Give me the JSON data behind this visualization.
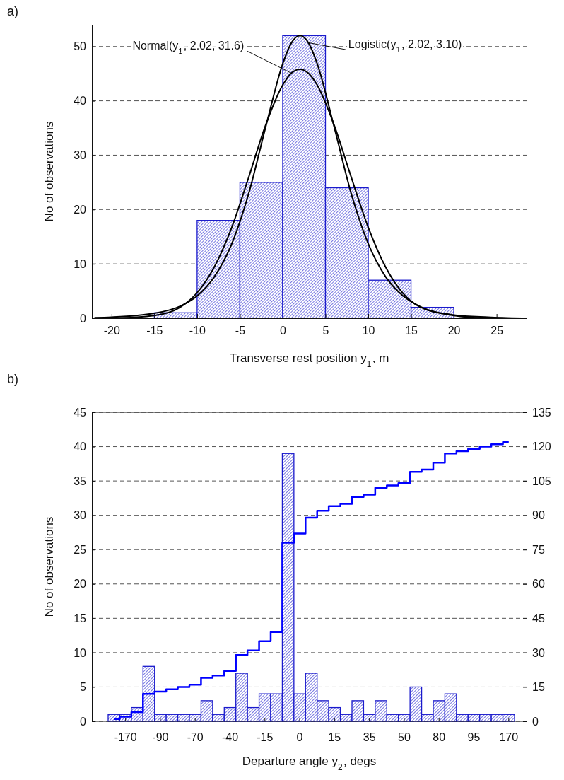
{
  "chart_data": [
    {
      "type": "histogram",
      "xlabel": "Transverse rest position y$_{1}$, m",
      "ylabel": "No of observations",
      "bins": [
        -15,
        -10,
        -5,
        0,
        5,
        10,
        15,
        20
      ],
      "values": [
        1,
        18,
        25,
        52,
        24,
        7,
        2
      ],
      "color": "#1a1acc",
      "xlim": [
        -22.3,
        28.5
      ],
      "xticks": [
        -20,
        -15,
        -10,
        -5,
        0,
        5,
        10,
        15,
        20,
        25
      ],
      "ylim": [
        0,
        54
      ],
      "yticks": [
        0,
        10,
        20,
        30,
        40,
        50
      ],
      "grid": "y",
      "annotations": [
        "a)"
      ],
      "series": [
        {
          "type": "line",
          "name": "Normal(y$_{1}$, 2.02, 31.6)",
          "color": "#000000",
          "x": [
            -20,
            -15,
            -12,
            -10,
            -8,
            -6,
            -4,
            -2,
            0,
            1,
            2.02,
            3,
            4,
            6,
            8,
            10,
            12,
            14,
            16,
            20,
            24
          ],
          "values": [
            0.0,
            0.5,
            2.0,
            4.7,
            9.4,
            16.5,
            25.8,
            35.5,
            42.9,
            45.1,
            45.8,
            45.1,
            43.0,
            35.6,
            26.0,
            16.7,
            9.5,
            4.7,
            2.1,
            0.5,
            0.0
          ]
        },
        {
          "type": "line",
          "name": "Logistic(y$_{1}$, 2.02, 3.10)",
          "color": "#000000",
          "x": [
            -22,
            -20,
            -15,
            -12,
            -10,
            -8,
            -6,
            -4,
            -2,
            0,
            1,
            2.02,
            3,
            4,
            6,
            8,
            10,
            12,
            14,
            16,
            20,
            24,
            28
          ],
          "values": [
            0.1,
            0.2,
            0.9,
            2.2,
            4.1,
            7.6,
            13.5,
            22.8,
            35.1,
            46.8,
            50.6,
            52.0,
            50.7,
            47.0,
            35.3,
            23.0,
            13.7,
            7.7,
            4.2,
            2.2,
            0.6,
            0.2,
            0.0
          ]
        }
      ]
    },
    {
      "type": "bar",
      "xlabel": "Departure angle y$_{2}$, degs",
      "ylabel": "No of observations",
      "categories": [
        null,
        "-170",
        null,
        null,
        "-90",
        null,
        null,
        "-70",
        null,
        null,
        "-40",
        null,
        null,
        "-15",
        null,
        null,
        "0",
        null,
        null,
        "15",
        null,
        null,
        "35",
        null,
        null,
        "50",
        null,
        null,
        "80",
        null,
        null,
        "95",
        null,
        null,
        "170"
      ],
      "ylim": [
        0,
        45
      ],
      "yticks": [
        0,
        5,
        10,
        15,
        20,
        25,
        30,
        35,
        40,
        45
      ],
      "y2lim": [
        0,
        135
      ],
      "y2ticks": [
        0,
        15,
        30,
        45,
        60,
        75,
        90,
        105,
        120,
        135
      ],
      "grid": "y",
      "annotations": [
        "b)"
      ],
      "series": [
        {
          "type": "bar",
          "color": "#1a1acc",
          "values": [
            1,
            1,
            2,
            8,
            1,
            1,
            1,
            1,
            3,
            1,
            2,
            7,
            2,
            4,
            4,
            39,
            4,
            7,
            3,
            2,
            1,
            3,
            1,
            3,
            1,
            1,
            5,
            1,
            3,
            4,
            1,
            1,
            1,
            1,
            1
          ]
        },
        {
          "type": "step",
          "axis": "y2",
          "color": "#0000ff",
          "values": [
            1,
            2,
            4,
            12,
            13,
            14,
            15,
            16,
            19,
            20,
            22,
            29,
            31,
            35,
            39,
            78,
            82,
            89,
            92,
            94,
            95,
            98,
            99,
            102,
            103,
            104,
            109,
            110,
            113,
            117,
            118,
            119,
            120,
            121,
            122
          ]
        }
      ]
    }
  ]
}
